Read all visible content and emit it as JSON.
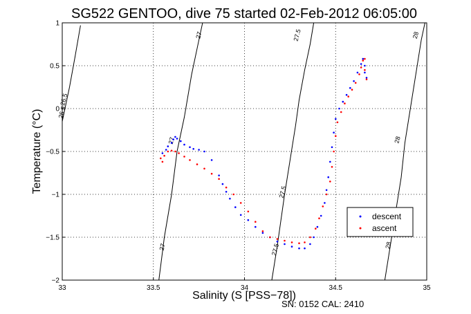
{
  "chart_data": {
    "type": "scatter",
    "title": "SG522 GENTOO, dive 75 started 02-Feb-2012 06:05:00",
    "xlabel": "Salinity (S [PSS−78])",
    "ylabel": "Temperature (°C)",
    "footer": "SN: 0152  CAL: 2410",
    "xlim": [
      33,
      35
    ],
    "ylim": [
      -2,
      1
    ],
    "x_ticks": [
      33,
      33.5,
      34,
      34.5,
      35
    ],
    "x_tick_labels": [
      "33",
      "33.5",
      "34",
      "34.5",
      "35"
    ],
    "y_ticks": [
      -2,
      -1.5,
      -1,
      -0.5,
      0,
      0.5,
      1
    ],
    "y_tick_labels": [
      "−2",
      "−1.5",
      "−1",
      "−0.5",
      "0",
      "0.5",
      "1"
    ],
    "grid": "dotted",
    "legend_position": "lower-right",
    "colors": {
      "descent": "#0000ff",
      "ascent": "#ff0000",
      "contour": "#000000"
    },
    "density_contours": [
      {
        "label": "26.5",
        "points": [
          [
            33.0,
            -0.15
          ],
          [
            33.04,
            0.25
          ],
          [
            33.07,
            0.6
          ],
          [
            33.1,
            0.97
          ]
        ],
        "label_pos": [
          33.02,
          0.1
        ]
      },
      {
        "label": "27",
        "points": [
          [
            33.53,
            -2.0
          ],
          [
            33.56,
            -1.5
          ],
          [
            33.6,
            -1.0
          ],
          [
            33.63,
            -0.5
          ],
          [
            33.67,
            -0.1
          ],
          [
            33.71,
            0.4
          ],
          [
            33.75,
            0.8
          ],
          [
            33.77,
            1.0
          ]
        ],
        "label_pos": [
          33.76,
          0.85
        ]
      },
      {
        "label": "27.5",
        "points": [
          [
            34.15,
            -2.0
          ],
          [
            34.18,
            -1.6
          ],
          [
            34.2,
            -1.3
          ],
          [
            34.22,
            -1.0
          ],
          [
            34.25,
            -0.6
          ],
          [
            34.28,
            -0.2
          ],
          [
            34.3,
            0.1
          ],
          [
            34.33,
            0.45
          ],
          [
            34.36,
            0.75
          ],
          [
            34.38,
            1.0
          ]
        ],
        "label_pos": [
          34.3,
          0.85
        ]
      },
      {
        "label": "28",
        "points": [
          [
            34.77,
            -2.0
          ],
          [
            34.8,
            -1.6
          ],
          [
            34.83,
            -1.2
          ],
          [
            34.86,
            -0.8
          ],
          [
            34.88,
            -0.4
          ],
          [
            34.91,
            0.0
          ],
          [
            34.94,
            0.4
          ],
          [
            34.97,
            0.8
          ],
          [
            34.99,
            1.0
          ]
        ],
        "label_pos": [
          34.95,
          0.85
        ]
      }
    ],
    "contour_labels_extra": [
      {
        "label": "27",
        "pos": [
          33.56,
          -1.62
        ]
      },
      {
        "label": "27.5",
        "pos": [
          34.18,
          -1.65
        ]
      },
      {
        "label": "28",
        "pos": [
          34.8,
          -1.6
        ]
      },
      {
        "label": "27",
        "pos": [
          33.61,
          -0.38
        ]
      },
      {
        "label": "27.5",
        "pos": [
          34.22,
          -0.98
        ]
      },
      {
        "label": "28",
        "pos": [
          34.85,
          -0.37
        ]
      },
      {
        "label": "26.5",
        "pos": [
          33.01,
          -0.05
        ]
      }
    ],
    "series": [
      {
        "name": "descent",
        "points": [
          [
            33.55,
            -0.52
          ],
          [
            33.57,
            -0.48
          ],
          [
            33.58,
            -0.44
          ],
          [
            33.6,
            -0.4
          ],
          [
            33.61,
            -0.36
          ],
          [
            33.62,
            -0.33
          ],
          [
            33.63,
            -0.35
          ],
          [
            33.65,
            -0.38
          ],
          [
            33.67,
            -0.42
          ],
          [
            33.7,
            -0.45
          ],
          [
            33.72,
            -0.47
          ],
          [
            33.75,
            -0.48
          ],
          [
            33.78,
            -0.5
          ],
          [
            33.82,
            -0.6
          ],
          [
            33.86,
            -0.78
          ],
          [
            33.88,
            -0.88
          ],
          [
            33.9,
            -0.97
          ],
          [
            33.92,
            -1.05
          ],
          [
            33.95,
            -1.15
          ],
          [
            33.98,
            -1.24
          ],
          [
            34.02,
            -1.3
          ],
          [
            34.06,
            -1.38
          ],
          [
            34.1,
            -1.45
          ],
          [
            34.14,
            -1.5
          ],
          [
            34.18,
            -1.55
          ],
          [
            34.22,
            -1.58
          ],
          [
            34.26,
            -1.61
          ],
          [
            34.3,
            -1.63
          ],
          [
            34.33,
            -1.63
          ],
          [
            34.36,
            -1.58
          ],
          [
            34.38,
            -1.5
          ],
          [
            34.4,
            -1.38
          ],
          [
            34.42,
            -1.25
          ],
          [
            34.44,
            -1.1
          ],
          [
            34.45,
            -0.95
          ],
          [
            34.46,
            -0.8
          ],
          [
            34.47,
            -0.62
          ],
          [
            34.48,
            -0.45
          ],
          [
            34.49,
            -0.28
          ],
          [
            34.5,
            -0.12
          ],
          [
            34.52,
            0.0
          ],
          [
            34.54,
            0.08
          ],
          [
            34.56,
            0.16
          ],
          [
            34.58,
            0.24
          ],
          [
            34.6,
            0.32
          ],
          [
            34.62,
            0.42
          ],
          [
            34.64,
            0.52
          ],
          [
            34.65,
            0.58
          ],
          [
            34.66,
            0.5
          ],
          [
            34.66,
            0.42
          ],
          [
            34.67,
            0.36
          ]
        ]
      },
      {
        "name": "ascent",
        "points": [
          [
            33.54,
            -0.58
          ],
          [
            33.55,
            -0.62
          ],
          [
            33.56,
            -0.55
          ],
          [
            33.58,
            -0.5
          ],
          [
            33.6,
            -0.49
          ],
          [
            33.62,
            -0.5
          ],
          [
            33.64,
            -0.52
          ],
          [
            33.67,
            -0.56
          ],
          [
            33.7,
            -0.6
          ],
          [
            33.74,
            -0.65
          ],
          [
            33.78,
            -0.7
          ],
          [
            33.82,
            -0.76
          ],
          [
            33.86,
            -0.82
          ],
          [
            33.9,
            -0.92
          ],
          [
            33.94,
            -1.0
          ],
          [
            33.98,
            -1.1
          ],
          [
            34.02,
            -1.2
          ],
          [
            34.06,
            -1.32
          ],
          [
            34.1,
            -1.43
          ],
          [
            34.14,
            -1.5
          ],
          [
            34.18,
            -1.52
          ],
          [
            34.22,
            -1.54
          ],
          [
            34.26,
            -1.56
          ],
          [
            34.3,
            -1.57
          ],
          [
            34.33,
            -1.56
          ],
          [
            34.36,
            -1.5
          ],
          [
            34.39,
            -1.4
          ],
          [
            34.41,
            -1.28
          ],
          [
            34.43,
            -1.14
          ],
          [
            34.45,
            -1.0
          ],
          [
            34.47,
            -0.85
          ],
          [
            34.48,
            -0.68
          ],
          [
            34.49,
            -0.5
          ],
          [
            34.5,
            -0.32
          ],
          [
            34.51,
            -0.16
          ],
          [
            34.53,
            -0.04
          ],
          [
            34.55,
            0.06
          ],
          [
            34.57,
            0.14
          ],
          [
            34.59,
            0.22
          ],
          [
            34.61,
            0.3
          ],
          [
            34.63,
            0.4
          ],
          [
            34.64,
            0.48
          ],
          [
            34.65,
            0.56
          ],
          [
            34.66,
            0.58
          ],
          [
            34.66,
            0.45
          ],
          [
            34.67,
            0.34
          ]
        ]
      }
    ]
  }
}
